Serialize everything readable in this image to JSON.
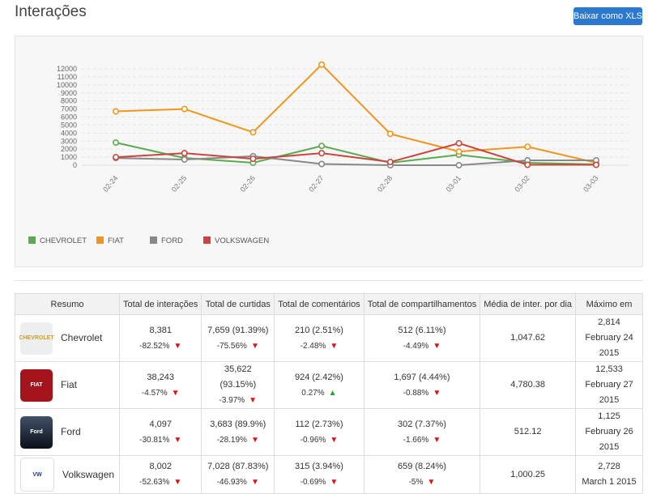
{
  "header": {
    "title": "Interações",
    "export_label": "Baixar como XLS"
  },
  "chart_data": {
    "type": "line",
    "x": [
      "02-24",
      "02-25",
      "02-26",
      "02-27",
      "02-28",
      "03-01",
      "03-02",
      "03-03"
    ],
    "yticks": [
      0,
      1000,
      2000,
      3000,
      4000,
      5000,
      6000,
      7000,
      8000,
      9000,
      10000,
      11000,
      12000
    ],
    "ylim": [
      0,
      12000
    ],
    "grid": true,
    "legend_position": "bottom-left",
    "series": [
      {
        "name": "CHEVROLET",
        "color": "#5aaa50",
        "values": [
          2814,
          900,
          300,
          2400,
          300,
          1300,
          300,
          100
        ]
      },
      {
        "name": "FIAT",
        "color": "#f0961e",
        "values": [
          6700,
          7000,
          4100,
          12533,
          3900,
          1700,
          2300,
          300
        ]
      },
      {
        "name": "FORD",
        "color": "#888888",
        "values": [
          900,
          700,
          1125,
          150,
          0,
          0,
          600,
          600
        ]
      },
      {
        "name": "VOLKSWAGEN",
        "color": "#c8463c",
        "values": [
          1000,
          1500,
          800,
          1500,
          400,
          2728,
          50,
          50
        ]
      }
    ]
  },
  "table": {
    "headers": [
      "Resumo",
      "Total de interações",
      "Total de curtidas",
      "Total de comentários",
      "Total de compartilhamentos",
      "Média de inter. por dia",
      "Máximo em"
    ],
    "rows": [
      {
        "brand": "Chevrolet",
        "logo_text": "CHEVROLET",
        "inter": "8,381",
        "inter_ch": "-82.52%",
        "inter_up": false,
        "likes": "7,659 (91.39%)",
        "likes_ch": "-75.56%",
        "likes_up": false,
        "comments": "210 (2.51%)",
        "comments_ch": "-2.48%",
        "comments_up": false,
        "shares": "512 (6.11%)",
        "shares_ch": "-4.49%",
        "shares_up": false,
        "avg": "1,047.62",
        "max": "2,814",
        "max_date": "February 24 2015"
      },
      {
        "brand": "Fiat",
        "logo_text": "FIAT",
        "inter": "38,243",
        "inter_ch": "-4.57%",
        "inter_up": false,
        "likes": "35,622 (93.15%)",
        "likes_ch": "-3.97%",
        "likes_up": false,
        "comments": "924 (2.42%)",
        "comments_ch": "0.27%",
        "comments_up": true,
        "shares": "1,697 (4.44%)",
        "shares_ch": "-0.88%",
        "shares_up": false,
        "avg": "4,780.38",
        "max": "12,533",
        "max_date": "February 27 2015"
      },
      {
        "brand": "Ford",
        "logo_text": "Ford",
        "inter": "4,097",
        "inter_ch": "-30.81%",
        "inter_up": false,
        "likes": "3,683 (89.9%)",
        "likes_ch": "-28.19%",
        "likes_up": false,
        "comments": "112 (2.73%)",
        "comments_ch": "-0.96%",
        "comments_up": false,
        "shares": "302 (7.37%)",
        "shares_ch": "-1.66%",
        "shares_up": false,
        "avg": "512.12",
        "max": "1,125",
        "max_date": "February 26 2015"
      },
      {
        "brand": "Volkswagen",
        "logo_text": "VW",
        "inter": "8,002",
        "inter_ch": "-52.63%",
        "inter_up": false,
        "likes": "7,028 (87.83%)",
        "likes_ch": "-46.93%",
        "likes_up": false,
        "comments": "315 (3.94%)",
        "comments_ch": "-0.69%",
        "comments_up": false,
        "shares": "659 (8.24%)",
        "shares_ch": "-5%",
        "shares_up": false,
        "avg": "1,000.25",
        "max": "2,728",
        "max_date": "March 1 2015"
      }
    ]
  }
}
